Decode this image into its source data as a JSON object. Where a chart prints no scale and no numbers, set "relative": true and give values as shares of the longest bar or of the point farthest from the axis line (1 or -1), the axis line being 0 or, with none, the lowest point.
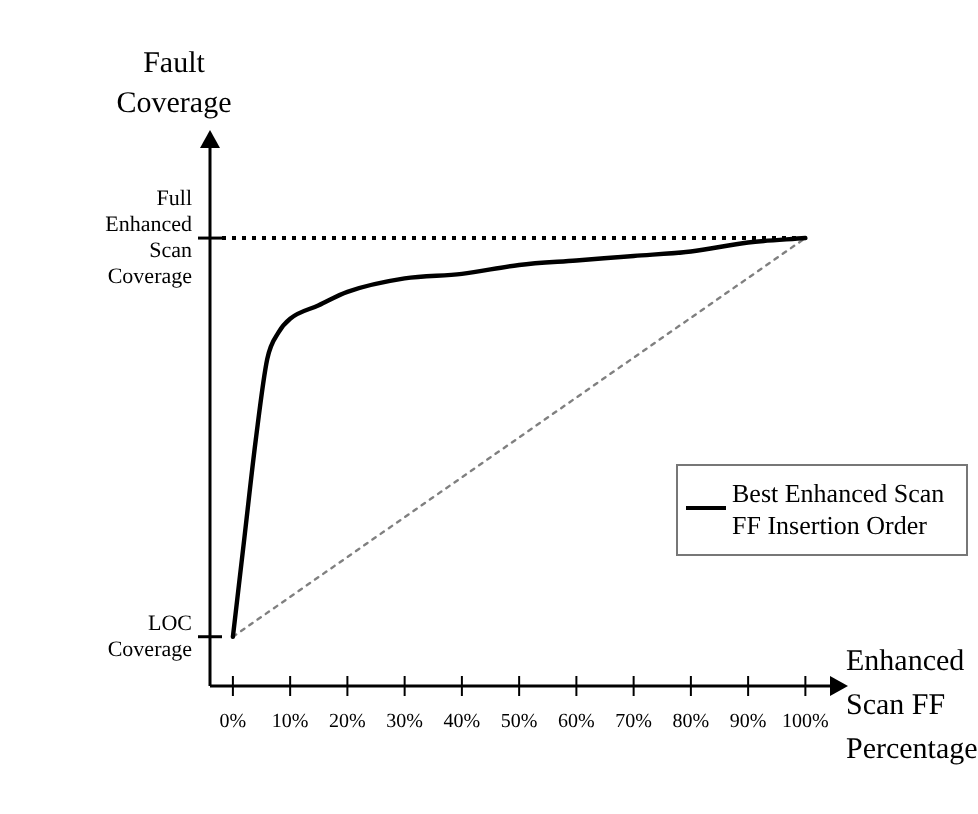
{
  "chart_data": {
    "type": "line",
    "relative": true,
    "xlabel": "Enhanced Scan FF Percentage",
    "ylabel": "Fault Coverage",
    "xlim": [
      -4,
      105
    ],
    "xticks": [
      {
        "value": 0,
        "label": "0%"
      },
      {
        "value": 10,
        "label": "10%"
      },
      {
        "value": 20,
        "label": "20%"
      },
      {
        "value": 30,
        "label": "30%"
      },
      {
        "value": 40,
        "label": "40%"
      },
      {
        "value": 50,
        "label": "50%"
      },
      {
        "value": 60,
        "label": "60%"
      },
      {
        "value": 70,
        "label": "70%"
      },
      {
        "value": 80,
        "label": "80%"
      },
      {
        "value": 90,
        "label": "90%"
      },
      {
        "value": 100,
        "label": "100%"
      }
    ],
    "series": [
      {
        "name": "Best Enhanced Scan FF Insertion Order",
        "color": "#000000",
        "x": [
          0,
          2,
          4,
          6,
          8,
          10,
          15,
          20,
          30,
          40,
          50,
          60,
          70,
          80,
          90,
          100
        ],
        "values": [
          0.11,
          0.33,
          0.55,
          0.73,
          0.79,
          0.82,
          0.85,
          0.88,
          0.91,
          0.92,
          0.94,
          0.95,
          0.96,
          0.97,
          0.99,
          1
        ]
      },
      {
        "color": "#808080",
        "line_style": "dotted",
        "x": [
          0,
          100
        ],
        "values": [
          0.11,
          1
        ]
      }
    ],
    "ref_lines": [
      {
        "axis": "y",
        "value": 1,
        "label": "Full Enhanced Scan Coverage",
        "color": "#000000",
        "line_style": "dotted"
      },
      {
        "axis": "y",
        "value": 0.11,
        "label": "LOC Coverage",
        "color": "#000000"
      }
    ],
    "legend": "right",
    "marker": "none",
    "line_style": "solid"
  }
}
